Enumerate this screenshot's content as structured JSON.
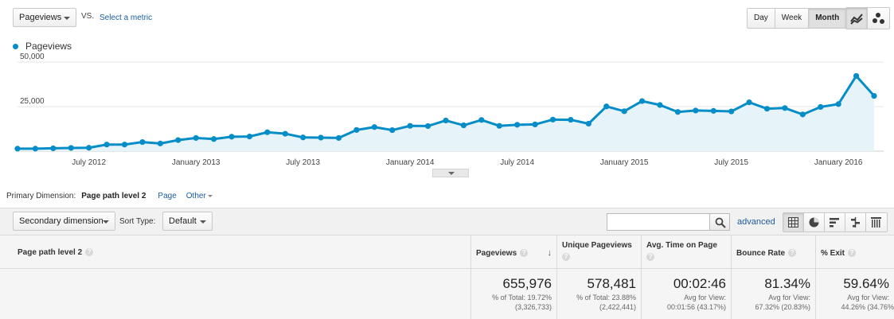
{
  "header": {
    "metric": "Pageviews",
    "vs": "VS.",
    "select_metric": "Select a metric",
    "ranges": [
      "Day",
      "Week",
      "Month"
    ],
    "active_range": "Month"
  },
  "legend": {
    "series_name": "Pageviews",
    "color": "#058dc7"
  },
  "chart_data": {
    "type": "area",
    "series": [
      {
        "name": "Pageviews",
        "values": [
          1400,
          1400,
          1600,
          1800,
          1900,
          3700,
          3700,
          5100,
          4300,
          6200,
          7400,
          6800,
          8100,
          8200,
          10600,
          9800,
          7700,
          7600,
          7400,
          11900,
          13500,
          11800,
          14200,
          14100,
          17200,
          14500,
          17500,
          14200,
          14800,
          15000,
          17700,
          17600,
          15400,
          25100,
          22400,
          28100,
          25900,
          22000,
          22800,
          22600,
          22300,
          27400,
          23800,
          24200,
          20600,
          24800,
          26400,
          42200,
          31000
        ]
      }
    ],
    "x_tick_labels": [
      "July 2012",
      "January 2013",
      "July 2013",
      "January 2014",
      "July 2014",
      "January 2015",
      "July 2015",
      "January 2016"
    ],
    "y_tick_labels": [
      "50,000",
      "25,000"
    ],
    "ylim": [
      0,
      50000
    ]
  },
  "dimension_bar": {
    "label": "Primary Dimension:",
    "current": "Page path level 2",
    "links": [
      "Page",
      "Other"
    ]
  },
  "toolbar": {
    "secondary_dimension": "Secondary dimension",
    "sort_type_label": "Sort Type:",
    "sort_type_value": "Default",
    "search_value": "",
    "advanced": "advanced"
  },
  "table": {
    "columns": [
      "Page path level 2",
      "Pageviews",
      "Unique Pageviews",
      "Avg. Time on Page",
      "Bounce Rate",
      "% Exit"
    ],
    "totals": {
      "pageviews": {
        "value": "655,976",
        "line1": "% of Total: 19.72%",
        "line2": "(3,326,733)"
      },
      "unique_pageviews": {
        "value": "578,481",
        "line1": "% of Total: 23.88%",
        "line2": "(2,422,441)"
      },
      "avg_time": {
        "value": "00:02:46",
        "line1": "Avg for View:",
        "line2": "00:01:56 (43.17%)"
      },
      "bounce_rate": {
        "value": "81.34%",
        "line1": "Avg for View:",
        "line2": "67.32% (20.83%)"
      },
      "exit": {
        "value": "59.64%",
        "line1": "Avg for View:",
        "line2": "44.26% (34.76%"
      }
    }
  }
}
